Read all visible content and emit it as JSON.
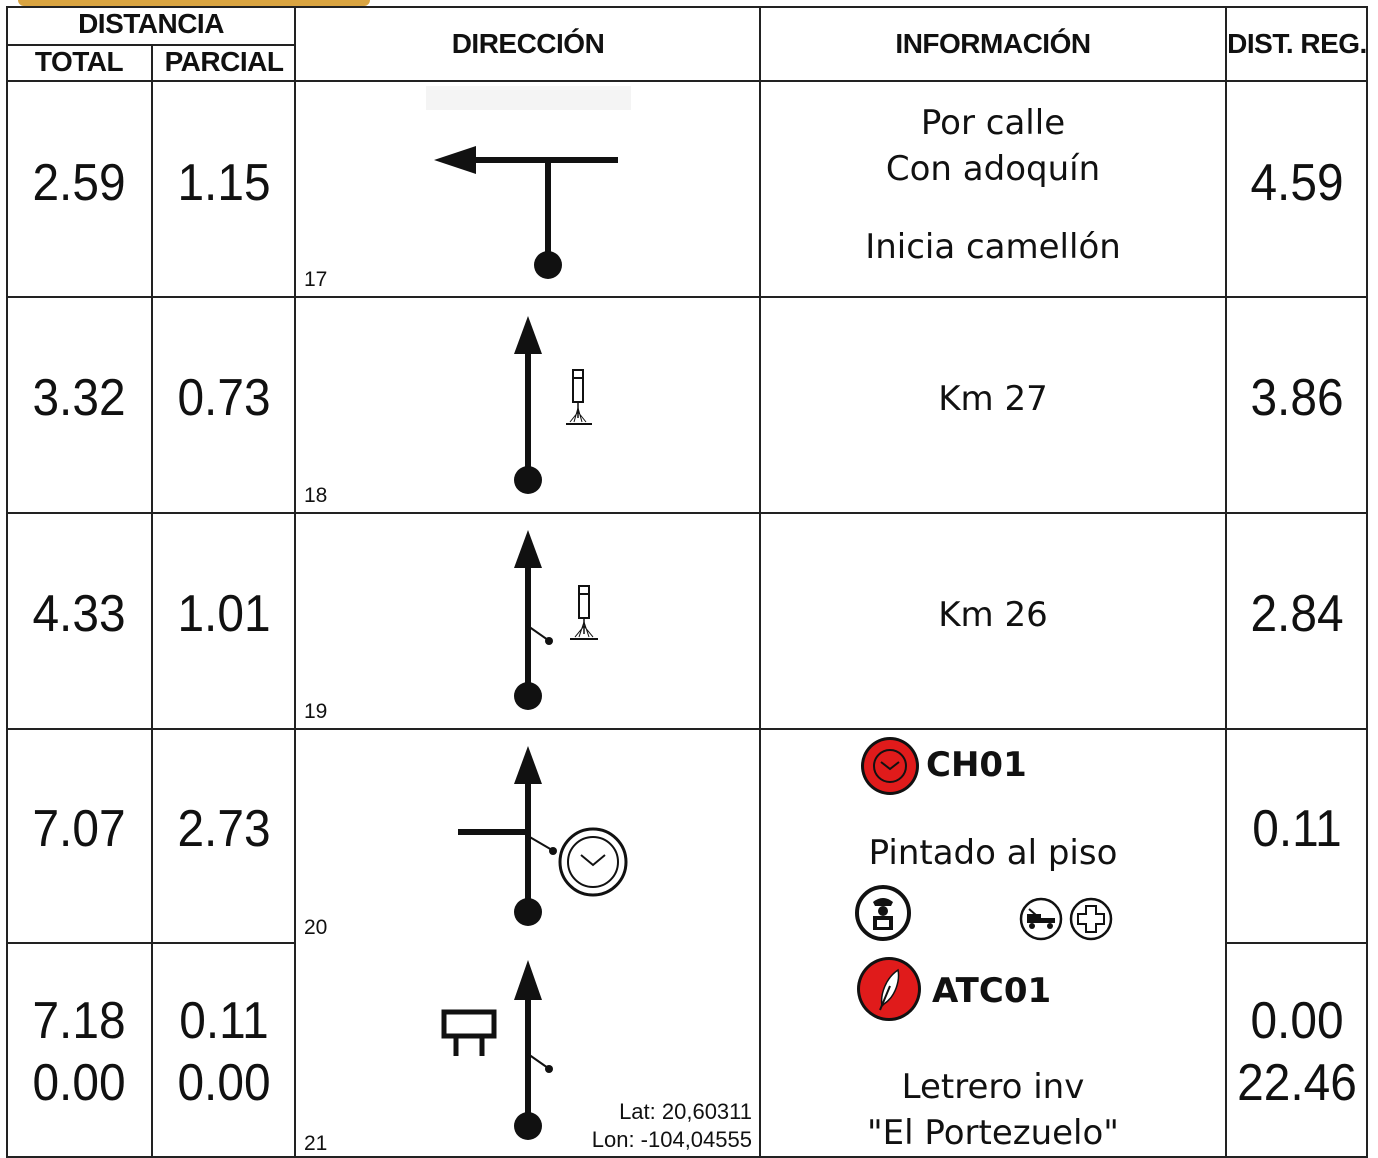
{
  "headers": {
    "distancia": "DISTANCIA",
    "total": "TOTAL",
    "parcial": "PARCIAL",
    "direccion": "DIRECCIÓN",
    "informacion": "INFORMACIÓN",
    "dist_reg": "DIST. REG."
  },
  "rows": [
    {
      "total": [
        "2.59"
      ],
      "parcial": [
        "1.15"
      ],
      "num": "17",
      "info": [
        "Por calle",
        "Con adoquín",
        "",
        "Inicia camellón"
      ],
      "dist_reg": [
        "4.59"
      ],
      "direction_icon": "turn-left-t-junction-icon"
    },
    {
      "total": [
        "3.32"
      ],
      "parcial": [
        "0.73"
      ],
      "num": "18",
      "info": [
        "Km 27"
      ],
      "dist_reg": [
        "3.86"
      ],
      "direction_icon": "straight-with-km-post-icon"
    },
    {
      "total": [
        "4.33"
      ],
      "parcial": [
        "1.01"
      ],
      "num": "19",
      "info": [
        "Km 26"
      ],
      "dist_reg": [
        "2.84"
      ],
      "direction_icon": "straight-with-km-post-icon"
    },
    {
      "total": [
        "7.07"
      ],
      "parcial": [
        "2.73"
      ],
      "num": "20",
      "info_badge": "CH01",
      "info_badge_icon": "time-control-icon",
      "info": [
        "Pintado al piso"
      ],
      "dist_reg": [
        "0.11"
      ],
      "direction_icon": "straight-left-junction-clock-icon",
      "services_icons": [
        "police-icon",
        "tow-truck-icon",
        "medical-cross-icon"
      ]
    },
    {
      "total": [
        "7.18",
        "0.00"
      ],
      "parcial": [
        "0.11",
        "0.00"
      ],
      "num": "21",
      "info_badge": "ATC01",
      "info_badge_icon": "feather-control-icon",
      "info": [
        "Letrero inv",
        "\"El Portezuelo\""
      ],
      "dist_reg": [
        "0.00",
        "22.46"
      ],
      "coords": [
        "Lat: 20,60311",
        "Lon: -104,04555"
      ],
      "direction_icon": "straight-with-sign-icon"
    }
  ],
  "colors": {
    "badge_red": "#e01b1b",
    "tab": "#d9a441",
    "line": "#222222"
  }
}
